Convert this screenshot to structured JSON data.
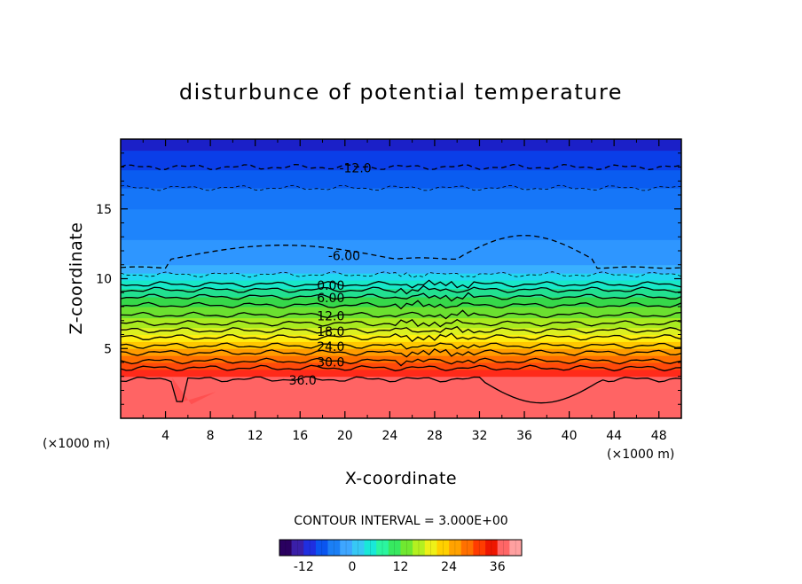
{
  "chart_data": {
    "type": "heatmap",
    "subtype": "filled-contour",
    "title": "disturbunce of potential temperature",
    "xlabel": "X-coordinate",
    "ylabel": "Z-coordinate",
    "x_unit_label": "(×1000 m)",
    "y_unit_label": "(×1000 m)",
    "xlim": [
      0,
      50
    ],
    "ylim": [
      0,
      20
    ],
    "x_ticks": [
      4,
      8,
      12,
      16,
      20,
      24,
      28,
      32,
      36,
      40,
      44,
      48
    ],
    "y_ticks": [
      5,
      10,
      15
    ],
    "contour_interval_text": "CONTOUR INTERVAL = 3.000E+00",
    "colorbar": {
      "min": -18,
      "max": 42,
      "ticks": [
        -12,
        0,
        12,
        24,
        36
      ],
      "colors": [
        "#2a0060",
        "#3a1fa8",
        "#1f2fe0",
        "#0a55f0",
        "#1b7ff5",
        "#3ea6ff",
        "#37c8f5",
        "#19e8d8",
        "#2bf5a0",
        "#37e860",
        "#70e830",
        "#b4f020",
        "#eef018",
        "#ffd000",
        "#ffa200",
        "#ff7000",
        "#ff3c00",
        "#ee1600",
        "#ff6666",
        "#ffa0a0"
      ]
    },
    "field_bands": [
      {
        "z": 0.0,
        "color": "#ff6464"
      },
      {
        "z": 3.0,
        "color": "#ff2a1a"
      },
      {
        "z": 3.5,
        "color": "#ff4a0a"
      },
      {
        "z": 4.0,
        "color": "#ff7000"
      },
      {
        "z": 4.5,
        "color": "#ff9c00"
      },
      {
        "z": 5.0,
        "color": "#ffc800"
      },
      {
        "z": 5.5,
        "color": "#ffee10"
      },
      {
        "z": 6.0,
        "color": "#dcf020"
      },
      {
        "z": 6.5,
        "color": "#a8ea20"
      },
      {
        "z": 7.2,
        "color": "#6be030"
      },
      {
        "z": 8.0,
        "color": "#36d84a"
      },
      {
        "z": 8.7,
        "color": "#22e090"
      },
      {
        "z": 9.3,
        "color": "#18e8c8"
      },
      {
        "z": 9.9,
        "color": "#20d8f0"
      },
      {
        "z": 10.4,
        "color": "#3ab0ff"
      },
      {
        "z": 11.0,
        "color": "#2e96ff"
      },
      {
        "z": 12.8,
        "color": "#1e84fb"
      },
      {
        "z": 15.0,
        "color": "#1676f8"
      },
      {
        "z": 16.5,
        "color": "#0a5cf0"
      },
      {
        "z": 17.8,
        "color": "#0a3ee8"
      },
      {
        "z": 19.2,
        "color": "#1b20c8"
      }
    ],
    "contours": [
      {
        "level": "-12.0",
        "z": 18.0,
        "style": "dashed",
        "label_x": 19.5
      },
      {
        "level": "-9.0",
        "z": 16.5,
        "style": "dashed-thin"
      },
      {
        "level": "-6.00",
        "z": 11.7,
        "style": "dashed",
        "label_x": 18.5
      },
      {
        "level": "-3.0",
        "z": 10.3,
        "style": "dashed-thin"
      },
      {
        "level": "0.00",
        "z": 9.6,
        "style": "solid",
        "label_x": 17.5
      },
      {
        "level": "3.0",
        "z": 9.2,
        "style": "solid"
      },
      {
        "level": "6.00",
        "z": 8.7,
        "style": "solid",
        "label_x": 17.5
      },
      {
        "level": "9.0",
        "z": 8.1,
        "style": "solid"
      },
      {
        "level": "12.0",
        "z": 7.4,
        "style": "solid",
        "label_x": 17.5
      },
      {
        "level": "15.0",
        "z": 6.8,
        "style": "solid"
      },
      {
        "level": "18.0",
        "z": 6.3,
        "style": "solid",
        "label_x": 17.5
      },
      {
        "level": "21.0",
        "z": 5.8,
        "style": "solid"
      },
      {
        "level": "24.0",
        "z": 5.2,
        "style": "solid",
        "label_x": 17.5
      },
      {
        "level": "27.0",
        "z": 4.7,
        "style": "solid"
      },
      {
        "level": "30.0",
        "z": 4.1,
        "style": "solid",
        "label_x": 17.5
      },
      {
        "level": "33.0",
        "z": 3.6,
        "style": "solid"
      },
      {
        "level": "36.0",
        "z": 2.8,
        "style": "solid",
        "label_x": 15.0
      }
    ]
  }
}
